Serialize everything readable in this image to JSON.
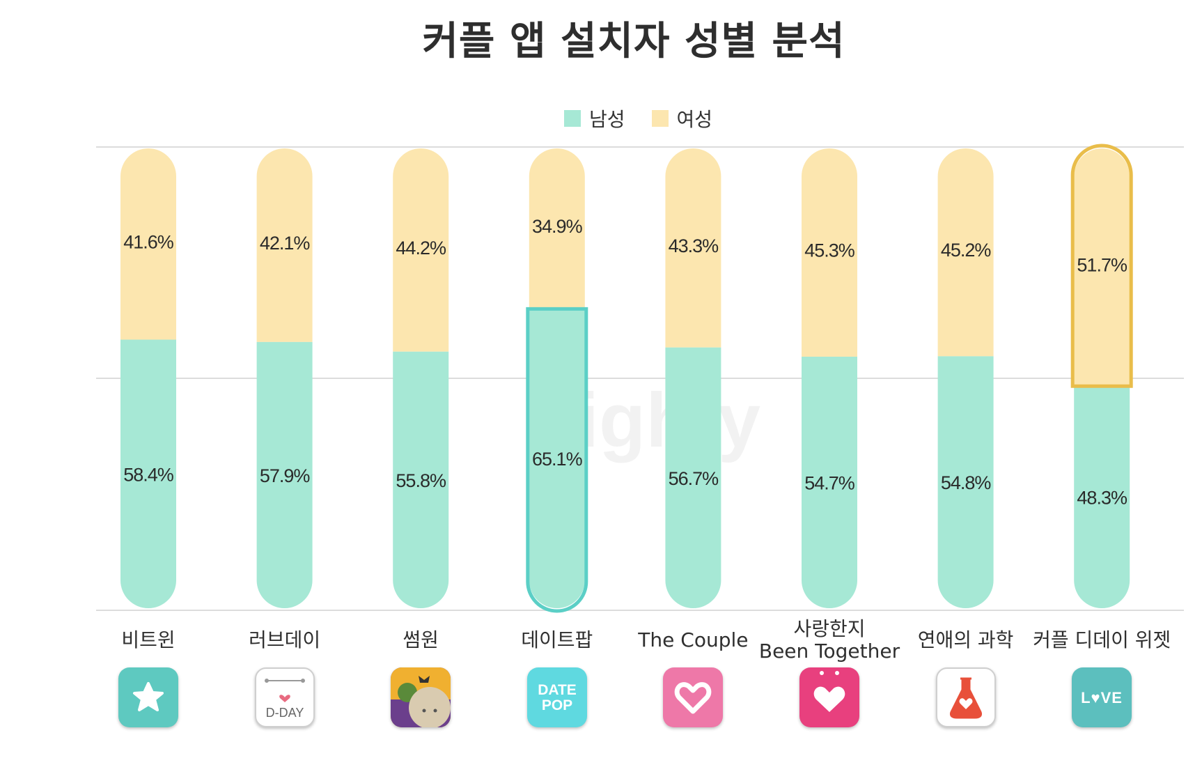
{
  "chart_data": {
    "type": "bar",
    "stacked": true,
    "title": "커플 앱 설치자 성별 분석",
    "categories": [
      "비트윈",
      "러브데이",
      "썸원",
      "데이트팝",
      "The Couple",
      "사랑한지 Been Together",
      "연애의 과학",
      "커플 디데이 위젯"
    ],
    "category_lines": [
      [
        "비트윈"
      ],
      [
        "러브데이"
      ],
      [
        "썸원"
      ],
      [
        "데이트팝"
      ],
      [
        "The Couple"
      ],
      [
        "사랑한지",
        "Been Together"
      ],
      [
        "연애의 과학"
      ],
      [
        "커플 디데이 위젯"
      ]
    ],
    "series": [
      {
        "name": "남성",
        "color": "#a6e8d5",
        "values": [
          58.4,
          57.9,
          55.8,
          65.1,
          56.7,
          54.7,
          54.8,
          48.3
        ],
        "labels": [
          "58.4%",
          "57.9%",
          "55.8%",
          "65.1%",
          "56.7%",
          "54.7%",
          "54.8%",
          "48.3%"
        ]
      },
      {
        "name": "여성",
        "color": "#fce6af",
        "values": [
          41.6,
          42.1,
          44.2,
          34.9,
          43.3,
          45.3,
          45.2,
          51.7
        ],
        "labels": [
          "41.6%",
          "42.1%",
          "44.2%",
          "34.9%",
          "43.3%",
          "45.3%",
          "45.2%",
          "51.7%"
        ]
      }
    ],
    "ylim": [
      0,
      100
    ],
    "grid": true,
    "legend_position": "top-center",
    "highlights": [
      {
        "category": "데이트팝",
        "series": "남성",
        "color": "#5bcfc6"
      },
      {
        "category": "커플 디데이 위젯",
        "series": "여성",
        "color": "#e9bd4a"
      }
    ]
  },
  "legend": {
    "male": "남성",
    "female": "여성",
    "male_color": "#a6e8d5",
    "female_color": "#fce6af"
  },
  "watermark": "Dighty",
  "app_icons": [
    {
      "name": "star-icon",
      "bg": "#5ec9c0"
    },
    {
      "name": "dday-calendar-icon",
      "bg": "#ffffff",
      "text": "D-DAY"
    },
    {
      "name": "characters-icon",
      "bg": "#7a4aa0"
    },
    {
      "name": "datepop-icon",
      "bg": "#5fd9e0",
      "text": "DATE POP"
    },
    {
      "name": "heart-outline-icon",
      "bg": "#ee78a8"
    },
    {
      "name": "heart-icon",
      "bg": "#e8407e"
    },
    {
      "name": "flask-heart-icon",
      "bg": "#ffffff"
    },
    {
      "name": "love-text-icon",
      "bg": "#5cbfbe",
      "text": "L♥VE"
    }
  ]
}
